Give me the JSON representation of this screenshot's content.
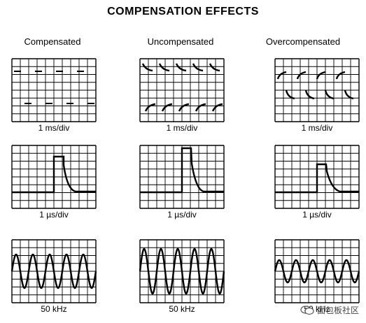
{
  "title": "COMPENSATION EFFECTS",
  "columns": [
    {
      "label": "Compensated"
    },
    {
      "label": "Uncompensated"
    },
    {
      "label": "Overcompensated"
    }
  ],
  "rows": [
    {
      "caption": "1 ms/div",
      "kind": "lowfreq"
    },
    {
      "caption": "1 µs/div",
      "kind": "pulse"
    },
    {
      "caption": "50 kHz",
      "kind": "sine"
    }
  ],
  "watermark": {
    "text": "面包板社区"
  }
}
